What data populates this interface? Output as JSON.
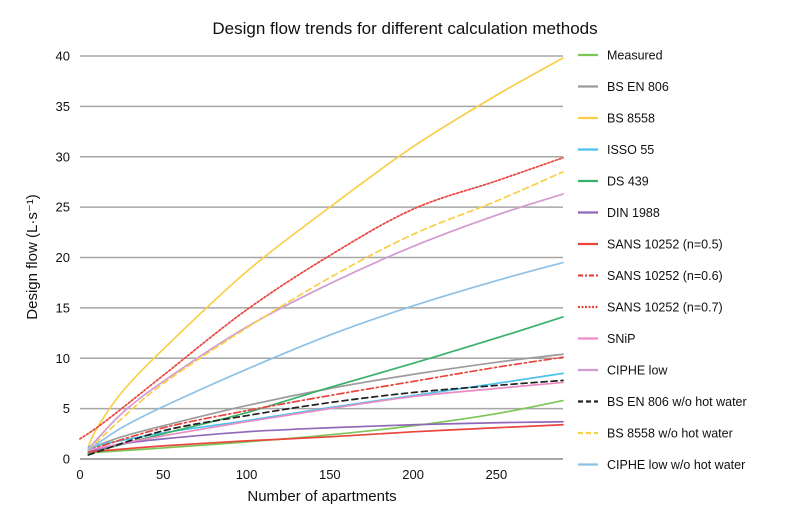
{
  "chart_data": {
    "type": "line",
    "title": "Design flow trends for different calculation methods",
    "xlabel": "Number of apartments",
    "ylabel": "Design flow (L·s⁻¹)",
    "xlim": [
      0,
      290
    ],
    "ylim": [
      0,
      40
    ],
    "x_ticks": [
      0,
      50,
      100,
      150,
      200,
      250
    ],
    "y_ticks": [
      0,
      5,
      10,
      15,
      20,
      25,
      30,
      35,
      40
    ],
    "grid": "horizontal",
    "legend_position": "right",
    "series": [
      {
        "name": "Measured",
        "color": "#7cc656",
        "dash": "solid",
        "x": [
          5,
          50,
          100,
          150,
          200,
          250,
          290
        ],
        "y": [
          0.6,
          1.1,
          1.7,
          2.4,
          3.3,
          4.5,
          5.8
        ]
      },
      {
        "name": "BS EN 806",
        "color": "#9c9c9c",
        "dash": "solid",
        "x": [
          5,
          25,
          50,
          100,
          150,
          200,
          250,
          290
        ],
        "y": [
          1.0,
          2.2,
          3.3,
          5.3,
          7.0,
          8.4,
          9.6,
          10.4
        ]
      },
      {
        "name": "BS 8558",
        "color": "#f8cf47",
        "dash": "solid",
        "x": [
          5,
          10,
          25,
          50,
          100,
          150,
          200,
          250,
          290
        ],
        "y": [
          1.2,
          3.0,
          6.6,
          10.9,
          18.6,
          25.0,
          31.0,
          36.1,
          39.8
        ]
      },
      {
        "name": "ISSO 55",
        "color": "#4cc3ea",
        "dash": "solid",
        "x": [
          5,
          50,
          100,
          150,
          200,
          250,
          290
        ],
        "y": [
          1.2,
          2.6,
          3.8,
          5.1,
          6.3,
          7.5,
          8.5
        ]
      },
      {
        "name": "DS 439",
        "color": "#3bb06a",
        "dash": "solid",
        "x": [
          5,
          50,
          100,
          150,
          200,
          250,
          290
        ],
        "y": [
          0.6,
          2.5,
          4.6,
          7.1,
          9.5,
          12.0,
          14.1
        ]
      },
      {
        "name": "DIN 1988",
        "color": "#9068b8",
        "dash": "solid",
        "x": [
          5,
          25,
          50,
          100,
          150,
          200,
          250,
          290
        ],
        "y": [
          0.7,
          1.5,
          2.0,
          2.7,
          3.1,
          3.4,
          3.6,
          3.7
        ]
      },
      {
        "name": "SANS 10252 (n=0.5)",
        "color": "#e8463e",
        "dash": "solid",
        "x": [
          5,
          50,
          100,
          150,
          200,
          250,
          290
        ],
        "y": [
          0.7,
          1.3,
          1.8,
          2.2,
          2.7,
          3.1,
          3.4
        ]
      },
      {
        "name": "SANS 10252 (n=0.6)",
        "color": "#e8463e",
        "dash": "dashdot",
        "x": [
          5,
          50,
          100,
          150,
          200,
          250,
          290
        ],
        "y": [
          0.9,
          3.1,
          4.8,
          6.3,
          7.7,
          9.1,
          10.1
        ]
      },
      {
        "name": "SANS 10252 (n=0.7)",
        "color": "#e8463e",
        "dash": "dotted",
        "x": [
          0,
          10,
          25,
          50,
          100,
          150,
          200,
          250,
          290
        ],
        "y": [
          2.0,
          3.1,
          5.0,
          8.3,
          14.8,
          20.2,
          24.8,
          27.6,
          29.9
        ]
      },
      {
        "name": "SNiP",
        "color": "#e98cc4",
        "dash": "solid",
        "x": [
          5,
          50,
          100,
          150,
          200,
          250,
          290
        ],
        "y": [
          0.9,
          2.3,
          3.7,
          5.0,
          6.2,
          7.0,
          7.6
        ]
      },
      {
        "name": "CIPHE low",
        "color": "#d49bd1",
        "dash": "solid",
        "x": [
          5,
          25,
          50,
          100,
          150,
          200,
          250,
          290
        ],
        "y": [
          1.0,
          4.5,
          7.7,
          13.1,
          17.4,
          21.1,
          24.2,
          26.3
        ]
      },
      {
        "name": "BS EN 806 w/o hot water",
        "color": "#222222",
        "dash": "dashed",
        "x": [
          5,
          50,
          100,
          150,
          200,
          250,
          290
        ],
        "y": [
          0.4,
          2.8,
          4.3,
          5.6,
          6.6,
          7.3,
          7.8
        ]
      },
      {
        "name": "BS 8558 w/o hot water",
        "color": "#f8cf47",
        "dash": "dashed",
        "x": [
          5,
          25,
          50,
          100,
          150,
          200,
          250,
          290
        ],
        "y": [
          0.9,
          4.0,
          7.5,
          13.0,
          18.0,
          22.3,
          25.6,
          28.5
        ]
      },
      {
        "name": "CIPHE low w/o hot water",
        "color": "#8ec1e6",
        "dash": "solid",
        "x": [
          5,
          25,
          50,
          100,
          150,
          200,
          250,
          290
        ],
        "y": [
          0.9,
          3.1,
          5.2,
          8.9,
          12.3,
          15.2,
          17.7,
          19.5
        ]
      }
    ]
  }
}
